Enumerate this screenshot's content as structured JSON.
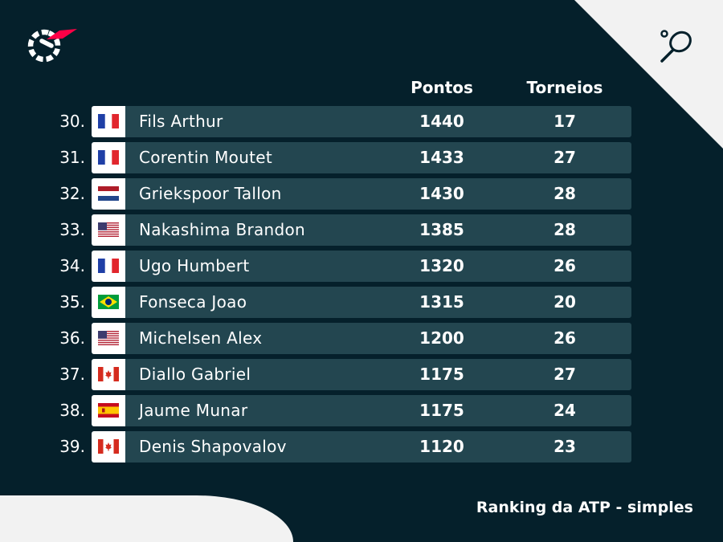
{
  "headers": {
    "points": "Pontos",
    "tournaments": "Torneios"
  },
  "footer": {
    "title": "Ranking da ATP - simples"
  },
  "rows": [
    {
      "rank": "30.",
      "country": "FR",
      "name": "Fils Arthur",
      "points": "1440",
      "tournaments": "17"
    },
    {
      "rank": "31.",
      "country": "FR",
      "name": "Corentin Moutet",
      "points": "1433",
      "tournaments": "27"
    },
    {
      "rank": "32.",
      "country": "NL",
      "name": "Griekspoor Tallon",
      "points": "1430",
      "tournaments": "28"
    },
    {
      "rank": "33.",
      "country": "US",
      "name": "Nakashima Brandon",
      "points": "1385",
      "tournaments": "28"
    },
    {
      "rank": "34.",
      "country": "FR",
      "name": "Ugo Humbert",
      "points": "1320",
      "tournaments": "26"
    },
    {
      "rank": "35.",
      "country": "BR",
      "name": "Fonseca Joao",
      "points": "1315",
      "tournaments": "20"
    },
    {
      "rank": "36.",
      "country": "US",
      "name": "Michelsen Alex",
      "points": "1200",
      "tournaments": "26"
    },
    {
      "rank": "37.",
      "country": "CA",
      "name": "Diallo Gabriel",
      "points": "1175",
      "tournaments": "27"
    },
    {
      "rank": "38.",
      "country": "ES",
      "name": "Jaume Munar",
      "points": "1175",
      "tournaments": "24"
    },
    {
      "rank": "39.",
      "country": "CA",
      "name": "Denis Shapovalov",
      "points": "1120",
      "tournaments": "23"
    }
  ],
  "icons": {
    "logo": "flashscore-logo-icon",
    "sport": "tennis-racket-icon"
  },
  "colors": {
    "background": "#05202b",
    "row": "#234650",
    "accent": "#ff0046",
    "corner": "#f2f2f2"
  }
}
